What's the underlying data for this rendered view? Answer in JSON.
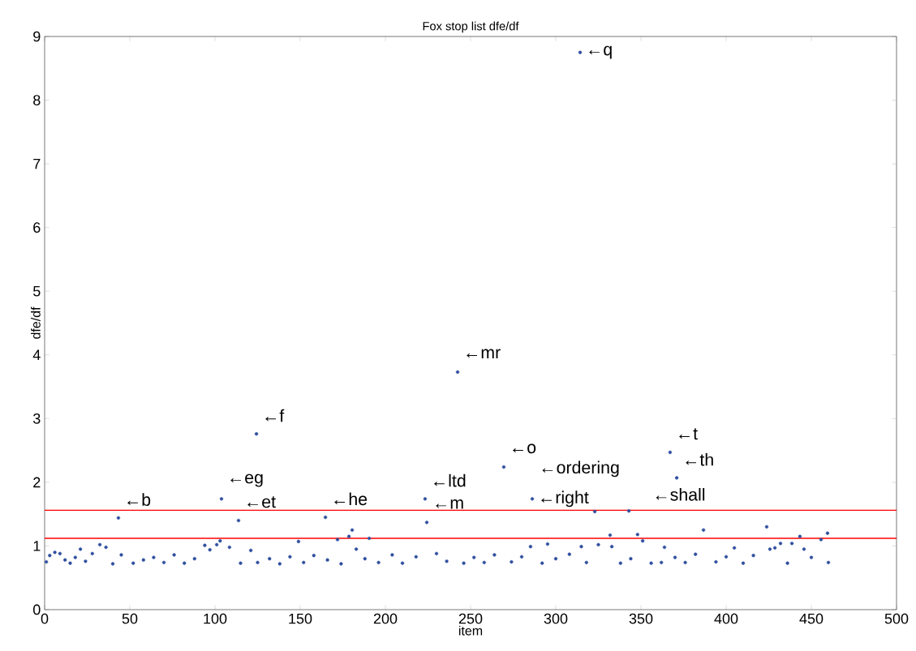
{
  "chart_data": {
    "type": "scatter",
    "title": "Fox stop list dfe/df",
    "xlabel": "item",
    "ylabel": "dfe/df",
    "xlim": [
      0,
      500
    ],
    "ylim": [
      0,
      9
    ],
    "xticks": [
      0,
      50,
      100,
      150,
      200,
      250,
      300,
      350,
      400,
      450,
      500
    ],
    "yticks": [
      0,
      1,
      2,
      3,
      4,
      5,
      6,
      7,
      8,
      9
    ],
    "grid": false,
    "marker": "circle",
    "series": [
      {
        "color": "#2f4f9f",
        "x": [
          1,
          3,
          6,
          9,
          12,
          15,
          18,
          21,
          24,
          28,
          32.4,
          36,
          40,
          43.3,
          45,
          52,
          58,
          64,
          70,
          76,
          82,
          88,
          94,
          97,
          101,
          103,
          103.8,
          108.5,
          113.8,
          115,
          121,
          124.3,
          125,
          132,
          138,
          144,
          149,
          152,
          158,
          164.8,
          166,
          171.9,
          174,
          178.6,
          180.5,
          182.9,
          188,
          190.5,
          196,
          204,
          210,
          218,
          223.3,
          224.3,
          230,
          236,
          242.4,
          246,
          252,
          258,
          264,
          269.5,
          274,
          280,
          285.2,
          286.2,
          292,
          295.2,
          300,
          308,
          314.3,
          315,
          318,
          322.9,
          325,
          331.9,
          332.9,
          338,
          342.9,
          344,
          348,
          351,
          356,
          362,
          363.8,
          367.1,
          370,
          371,
          376,
          382,
          386.7,
          394,
          400,
          404.8,
          410,
          416,
          423.8,
          425.7,
          428.6,
          431.9,
          436,
          438.6,
          443.3,
          445.7,
          450,
          455.7,
          459.5,
          460
        ],
        "values": [
          0.75,
          0.85,
          0.9,
          0.88,
          0.78,
          0.73,
          0.82,
          0.95,
          0.76,
          0.88,
          1.02,
          0.98,
          0.72,
          1.44,
          0.86,
          0.73,
          0.78,
          0.82,
          0.74,
          0.86,
          0.73,
          0.8,
          1.01,
          0.94,
          1.02,
          1.08,
          1.74,
          0.98,
          1.4,
          0.73,
          0.93,
          2.76,
          0.74,
          0.8,
          0.72,
          0.83,
          1.07,
          0.74,
          0.85,
          1.45,
          0.78,
          1.1,
          0.72,
          1.15,
          1.25,
          0.95,
          0.8,
          1.12,
          0.74,
          0.86,
          0.73,
          0.83,
          1.74,
          1.37,
          0.88,
          0.76,
          3.73,
          0.73,
          0.82,
          0.74,
          0.86,
          2.24,
          0.75,
          0.83,
          0.99,
          1.74,
          0.73,
          1.03,
          0.8,
          0.87,
          8.75,
          0.99,
          0.74,
          1.54,
          1.02,
          1.17,
          0.99,
          0.73,
          1.55,
          0.8,
          1.18,
          1.08,
          0.73,
          0.74,
          0.98,
          2.47,
          0.82,
          2.07,
          0.74,
          0.87,
          1.25,
          0.75,
          0.83,
          0.97,
          0.73,
          0.85,
          1.3,
          0.95,
          0.97,
          1.04,
          0.73,
          1.04,
          1.15,
          0.95,
          0.82,
          1.1,
          1.2,
          0.74
        ]
      }
    ],
    "ref_lines": [
      {
        "axis": "y",
        "value": 1.56,
        "color": "#ff0000"
      },
      {
        "axis": "y",
        "value": 1.12,
        "color": "#ff0000"
      }
    ],
    "annotations": [
      {
        "text": "←b",
        "x": 43.3,
        "y": 1.44
      },
      {
        "text": "←eg",
        "x": 103.8,
        "y": 1.74
      },
      {
        "text": "←et",
        "x": 113.8,
        "y": 1.4
      },
      {
        "text": "←f",
        "x": 124.3,
        "y": 2.76
      },
      {
        "text": "←he",
        "x": 164.8,
        "y": 1.45
      },
      {
        "text": "←ltd",
        "x": 223.3,
        "y": 1.74
      },
      {
        "text": "←m",
        "x": 224.3,
        "y": 1.37
      },
      {
        "text": "←mr",
        "x": 242.4,
        "y": 3.73
      },
      {
        "text": "←o",
        "x": 269.5,
        "y": 2.24
      },
      "←ordering",
      {
        "text": "←right",
        "x": 286.2,
        "y": 1.74
      },
      {
        "text": "←q",
        "x": 314.3,
        "y": 8.75
      },
      {
        "text": "←t",
        "x": 367.1,
        "y": 2.47
      },
      {
        "text": "←th",
        "x": 371,
        "y": 2.07
      },
      "←shall"
    ]
  }
}
